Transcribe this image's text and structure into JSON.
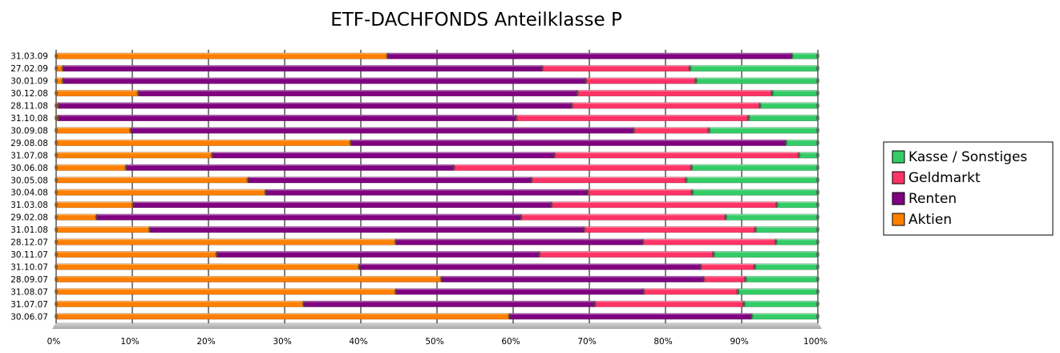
{
  "chart_data": {
    "type": "bar",
    "orientation": "horizontal",
    "stacked": "percent",
    "title": "ETF-DACHFONDS Anteilklasse P",
    "categories": [
      "31.03.09",
      "27.02.09",
      "30.01.09",
      "30.12.08",
      "28.11.08",
      "31.10.08",
      "30.09.08",
      "29.08.08",
      "31.07.08",
      "30.06.08",
      "30.05.08",
      "30.04.08",
      "31.03.08",
      "29.02.08",
      "31.01.08",
      "28.12.07",
      "30.11.07",
      "31.10.07",
      "28.09.07",
      "31.08.07",
      "31.07.07",
      "30.06.07"
    ],
    "series": [
      {
        "name": "Aktien",
        "color": "#ff7f00",
        "values": [
          43.5,
          0.9,
          0.9,
          10.8,
          0.3,
          0.3,
          9.8,
          38.7,
          20.5,
          9.2,
          25.2,
          27.5,
          10.1,
          5.3,
          12.3,
          44.6,
          21.1,
          39.8,
          50.6,
          44.6,
          32.5,
          59.5
        ]
      },
      {
        "name": "Renten",
        "color": "#800080",
        "values": [
          53.1,
          62.9,
          68.6,
          57.6,
          67.4,
          60.1,
          66.0,
          57.1,
          44.9,
          43.0,
          37.2,
          42.3,
          54.9,
          55.7,
          57.0,
          32.4,
          42.3,
          44.8,
          34.4,
          32.5,
          38.2,
          31.8
        ]
      },
      {
        "name": "Geldmarkt",
        "color": "#ff3366",
        "values": [
          0,
          19.4,
          14.5,
          25.6,
          24.7,
          30.5,
          9.9,
          0,
          32.1,
          31.2,
          20.3,
          13.7,
          29.6,
          26.9,
          22.5,
          17.5,
          22.9,
          7.1,
          5.5,
          12.4,
          19.6,
          0
        ]
      },
      {
        "name": "Kasse / Sonstiges",
        "color": "#33cc66",
        "values": [
          3.4,
          16.8,
          16.0,
          6.0,
          7.6,
          9.1,
          14.3,
          4.2,
          2.5,
          16.6,
          17.3,
          16.5,
          5.4,
          12.1,
          8.2,
          5.5,
          13.7,
          8.3,
          9.5,
          10.5,
          9.7,
          8.7
        ]
      }
    ],
    "xticks": [
      "0%",
      "10%",
      "20%",
      "30%",
      "40%",
      "50%",
      "60%",
      "70%",
      "80%",
      "90%",
      "100%"
    ],
    "xlim": [
      0,
      100
    ],
    "grid": true,
    "legend": {
      "placement": "right",
      "entries": [
        "Kasse / Sonstiges",
        "Geldmarkt",
        "Renten",
        "Aktien"
      ]
    }
  }
}
